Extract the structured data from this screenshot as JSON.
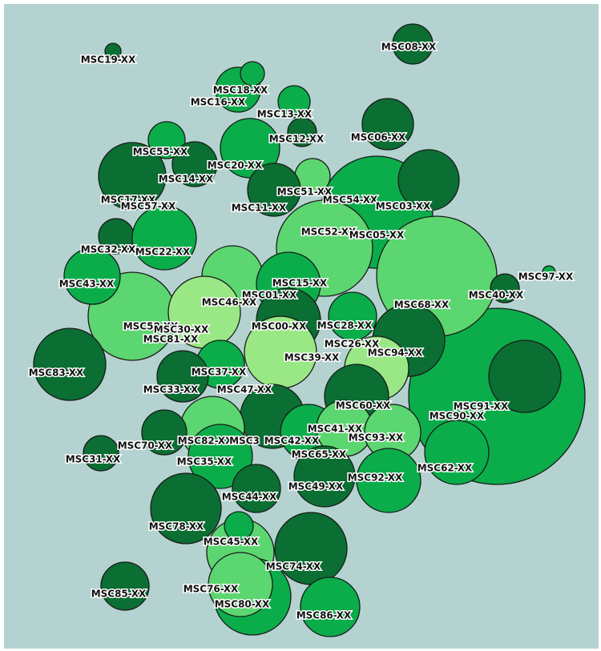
{
  "map": {
    "labels": [
      "MSC19-XX",
      "MSC08-XX",
      "MSC18-XX",
      "MSC16-XX",
      "MSC13-XX",
      "MSC12-XX",
      "MSC06-XX",
      "MSC55-XX",
      "MSC20-XX",
      "MSC14-XX",
      "MSC17-XX",
      "MSC57-XX",
      "MSC51-XX",
      "MSC11-XX",
      "MSC54-XX",
      "MSC03-XX",
      "MSC52-XX",
      "MSC05-XX",
      "MSC32-XX",
      "MSC22-XX",
      "MSC43-XX",
      "MSC15-XX",
      "MSC01-XX",
      "MSC46-XX",
      "MSC97-XX",
      "MSC40-XX",
      "MSC68-XX",
      "MSC58-XX",
      "MSC30-XX",
      "MSC81-XX",
      "MSC00-XX",
      "MSC28-XX",
      "MSC26-XX",
      "MSC39-XX",
      "MSC94-XX",
      "MSC83-XX",
      "MSC37-XX",
      "MSC33-XX",
      "MSC47-XX",
      "MSC60-XX",
      "MSC91-XX",
      "MSC90-XX",
      "MSC41-XX",
      "MSC93-XX",
      "MSC82-XX",
      "MSC3",
      "MSC42-XX",
      "MSC70-XX",
      "MSC31-XX",
      "MSC65-XX",
      "MSC35-XX",
      "MSC62-XX",
      "MSC92-XX",
      "MSC49-XX",
      "MSC44-XX",
      "MSC78-XX",
      "MSC45-XX",
      "MSC74-XX",
      "MSC76-XX",
      "MSC80-XX",
      "MSC85-XX",
      "MSC86-XX"
    ]
  }
}
